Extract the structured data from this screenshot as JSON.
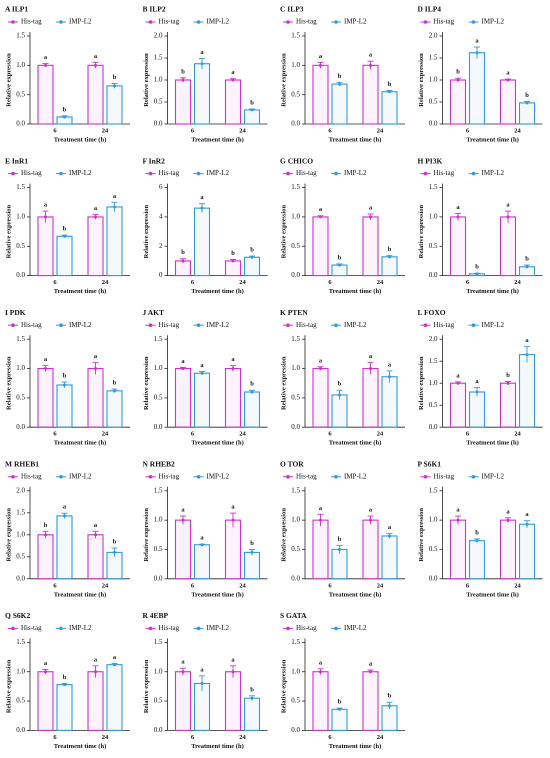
{
  "chart_data": [
    {
      "type": "bar",
      "title": "A ILP1",
      "y_label": "Relative expression",
      "x_label": "Treatment time (h)",
      "categories": [
        "6",
        "24"
      ],
      "ylim": [
        0,
        1.5
      ],
      "yticks": [
        {
          "value": 0,
          "label": "0.0"
        },
        0.5,
        {
          "value": 1,
          "label": "1.0"
        },
        1.5
      ],
      "series": [
        {
          "name": "His-tag",
          "color": "#cc33cc",
          "values": [
            1,
            1
          ],
          "errors": [
            0.03,
            0.05
          ],
          "letters": [
            "a",
            "a"
          ]
        },
        {
          "name": "IMP-L2",
          "color": "#3399dd",
          "values": [
            0.12,
            0.65
          ],
          "errors": [
            0.02,
            0.04
          ],
          "letters": [
            "b",
            "b"
          ]
        }
      ]
    },
    {
      "type": "bar",
      "title": "B ILP2",
      "y_label": "Relative expression",
      "x_label": "Treatment time (h)",
      "categories": [
        "6",
        "24"
      ],
      "ylim": [
        0,
        2
      ],
      "yticks": [
        {
          "value": 0,
          "label": "0.0"
        },
        0.5,
        {
          "value": 1,
          "label": "1.0"
        },
        1.5,
        {
          "value": 2,
          "label": "2.0"
        }
      ],
      "series": [
        {
          "name": "His-tag",
          "color": "#cc33cc",
          "values": [
            1,
            1
          ],
          "errors": [
            0.05,
            0.03
          ],
          "letters": [
            "b",
            "a"
          ]
        },
        {
          "name": "IMP-L2",
          "color": "#3399dd",
          "values": [
            1.37,
            0.32
          ],
          "errors": [
            0.12,
            0.02
          ],
          "letters": [
            "a",
            "b"
          ]
        }
      ]
    },
    {
      "type": "bar",
      "title": "C ILP3",
      "y_label": "Relative expression",
      "x_label": "Treatment time (h)",
      "categories": [
        "6",
        "24"
      ],
      "ylim": [
        0,
        1.5
      ],
      "yticks": [
        {
          "value": 0,
          "label": "0.0"
        },
        0.5,
        {
          "value": 1,
          "label": "1.0"
        },
        1.5
      ],
      "series": [
        {
          "name": "His-tag",
          "color": "#cc33cc",
          "values": [
            1,
            1
          ],
          "errors": [
            0.05,
            0.07
          ],
          "letters": [
            "a",
            "a"
          ]
        },
        {
          "name": "IMP-L2",
          "color": "#3399dd",
          "values": [
            0.68,
            0.55
          ],
          "errors": [
            0.03,
            0.02
          ],
          "letters": [
            "b",
            "b"
          ]
        }
      ]
    },
    {
      "type": "bar",
      "title": "D ILP4",
      "y_label": "Relative expression",
      "x_label": "Treatment time (h)",
      "categories": [
        "6",
        "24"
      ],
      "ylim": [
        0,
        2
      ],
      "yticks": [
        {
          "value": 0,
          "label": "0.0"
        },
        0.5,
        {
          "value": 1,
          "label": "1.0"
        },
        1.5,
        {
          "value": 2,
          "label": "2.0"
        }
      ],
      "series": [
        {
          "name": "His-tag",
          "color": "#cc33cc",
          "values": [
            1,
            1
          ],
          "errors": [
            0.04,
            0.02
          ],
          "letters": [
            "b",
            "a"
          ]
        },
        {
          "name": "IMP-L2",
          "color": "#3399dd",
          "values": [
            1.62,
            0.48
          ],
          "errors": [
            0.13,
            0.03
          ],
          "letters": [
            "a",
            "b"
          ]
        }
      ]
    },
    {
      "type": "bar",
      "title": "E InR1",
      "y_label": "Relative expression",
      "x_label": "Treatment time (h)",
      "categories": [
        "6",
        "24"
      ],
      "ylim": [
        0,
        1.5
      ],
      "yticks": [
        {
          "value": 0,
          "label": "0.0"
        },
        0.5,
        {
          "value": 1,
          "label": "1.0"
        },
        1.5
      ],
      "series": [
        {
          "name": "His-tag",
          "color": "#cc33cc",
          "values": [
            1,
            1
          ],
          "errors": [
            0.1,
            0.04
          ],
          "letters": [
            "a",
            "a"
          ]
        },
        {
          "name": "IMP-L2",
          "color": "#3399dd",
          "values": [
            0.67,
            1.17
          ],
          "errors": [
            0.02,
            0.08
          ],
          "letters": [
            "b",
            "a"
          ]
        }
      ]
    },
    {
      "type": "bar",
      "title": "F InR2",
      "y_label": "Relative expression",
      "x_label": "Treatment time (h)",
      "categories": [
        "6",
        "24"
      ],
      "ylim": [
        0,
        6
      ],
      "yticks": [
        0,
        2,
        4,
        6
      ],
      "series": [
        {
          "name": "His-tag",
          "color": "#cc33cc",
          "values": [
            1,
            1
          ],
          "errors": [
            0.15,
            0.1
          ],
          "letters": [
            "b",
            "b"
          ]
        },
        {
          "name": "IMP-L2",
          "color": "#3399dd",
          "values": [
            4.6,
            1.25
          ],
          "errors": [
            0.3,
            0.08
          ],
          "letters": [
            "a",
            "b"
          ]
        }
      ]
    },
    {
      "type": "bar",
      "title": "G CHICO",
      "y_label": "Relative expression",
      "x_label": "Treatment time (h)",
      "categories": [
        "6",
        "24"
      ],
      "ylim": [
        0,
        1.5
      ],
      "yticks": [
        {
          "value": 0,
          "label": "0.0"
        },
        0.5,
        {
          "value": 1,
          "label": "1.0"
        },
        1.5
      ],
      "series": [
        {
          "name": "His-tag",
          "color": "#cc33cc",
          "values": [
            1,
            1
          ],
          "errors": [
            0.02,
            0.05
          ],
          "letters": [
            "a",
            "a"
          ]
        },
        {
          "name": "IMP-L2",
          "color": "#3399dd",
          "values": [
            0.18,
            0.32
          ],
          "errors": [
            0.02,
            0.02
          ],
          "letters": [
            "b",
            "b"
          ]
        }
      ]
    },
    {
      "type": "bar",
      "title": "H PI3K",
      "y_label": "Relative expression",
      "x_label": "Treatment time (h)",
      "categories": [
        "6",
        "24"
      ],
      "ylim": [
        0,
        1.5
      ],
      "yticks": [
        {
          "value": 0,
          "label": "0.0"
        },
        0.5,
        {
          "value": 1,
          "label": "1.0"
        },
        1.5
      ],
      "series": [
        {
          "name": "His-tag",
          "color": "#cc33cc",
          "values": [
            1,
            1
          ],
          "errors": [
            0.06,
            0.1
          ],
          "letters": [
            "a",
            "a"
          ]
        },
        {
          "name": "IMP-L2",
          "color": "#3399dd",
          "values": [
            0.03,
            0.15
          ],
          "errors": [
            0.01,
            0.03
          ],
          "letters": [
            "b",
            "b"
          ]
        }
      ]
    },
    {
      "type": "bar",
      "title": "I PDK",
      "y_label": "Relative expression",
      "x_label": "Treatment time (h)",
      "categories": [
        "6",
        "24"
      ],
      "ylim": [
        0,
        1.5
      ],
      "yticks": [
        {
          "value": 0,
          "label": "0.0"
        },
        0.5,
        {
          "value": 1,
          "label": "1.0"
        },
        1.5
      ],
      "series": [
        {
          "name": "His-tag",
          "color": "#cc33cc",
          "values": [
            1,
            1
          ],
          "errors": [
            0.05,
            0.1
          ],
          "letters": [
            "a",
            "a"
          ]
        },
        {
          "name": "IMP-L2",
          "color": "#3399dd",
          "values": [
            0.72,
            0.62
          ],
          "errors": [
            0.05,
            0.03
          ],
          "letters": [
            "b",
            "b"
          ]
        }
      ]
    },
    {
      "type": "bar",
      "title": "J AKT",
      "y_label": "Relative expression",
      "x_label": "Treatment time (h)",
      "categories": [
        "6",
        "24"
      ],
      "ylim": [
        0,
        1.5
      ],
      "yticks": [
        {
          "value": 0,
          "label": "0.0"
        },
        0.5,
        {
          "value": 1,
          "label": "1.0"
        },
        1.5
      ],
      "series": [
        {
          "name": "His-tag",
          "color": "#cc33cc",
          "values": [
            1,
            1
          ],
          "errors": [
            0.02,
            0.05
          ],
          "letters": [
            "a",
            "a"
          ]
        },
        {
          "name": "IMP-L2",
          "color": "#3399dd",
          "values": [
            0.92,
            0.6
          ],
          "errors": [
            0.03,
            0.03
          ],
          "letters": [
            "a",
            "b"
          ]
        }
      ]
    },
    {
      "type": "bar",
      "title": "K PTEN",
      "y_label": "Relative expression",
      "x_label": "Treatment time (h)",
      "categories": [
        "6",
        "24"
      ],
      "ylim": [
        0,
        1.5
      ],
      "yticks": [
        {
          "value": 0,
          "label": "0.0"
        },
        0.5,
        {
          "value": 1,
          "label": "1.0"
        },
        1.5
      ],
      "series": [
        {
          "name": "His-tag",
          "color": "#cc33cc",
          "values": [
            1,
            1
          ],
          "errors": [
            0.03,
            0.1
          ],
          "letters": [
            "a",
            "a"
          ]
        },
        {
          "name": "IMP-L2",
          "color": "#3399dd",
          "values": [
            0.55,
            0.86
          ],
          "errors": [
            0.08,
            0.1
          ],
          "letters": [
            "b",
            "a"
          ]
        }
      ]
    },
    {
      "type": "bar",
      "title": "L FOXO",
      "y_label": "Relative expression",
      "x_label": "Treatment time (h)",
      "categories": [
        "6",
        "24"
      ],
      "ylim": [
        0,
        2
      ],
      "yticks": [
        {
          "value": 0,
          "label": "0.0"
        },
        0.5,
        {
          "value": 1,
          "label": "1.0"
        },
        1.5,
        {
          "value": 2,
          "label": "2.0"
        }
      ],
      "series": [
        {
          "name": "His-tag",
          "color": "#cc33cc",
          "values": [
            1,
            1
          ],
          "errors": [
            0.03,
            0.04
          ],
          "letters": [
            "a",
            "b"
          ]
        },
        {
          "name": "IMP-L2",
          "color": "#3399dd",
          "values": [
            0.8,
            1.65
          ],
          "errors": [
            0.1,
            0.18
          ],
          "letters": [
            "a",
            "a"
          ]
        }
      ]
    },
    {
      "type": "bar",
      "title": "M RHEB1",
      "y_label": "Relative expression",
      "x_label": "Treatment time (h)",
      "categories": [
        "6",
        "24"
      ],
      "ylim": [
        0,
        2
      ],
      "yticks": [
        {
          "value": 0,
          "label": "0.0"
        },
        0.5,
        {
          "value": 1,
          "label": "1.0"
        },
        1.5,
        {
          "value": 2,
          "label": "2.0"
        }
      ],
      "series": [
        {
          "name": "His-tag",
          "color": "#cc33cc",
          "values": [
            1,
            1
          ],
          "errors": [
            0.08,
            0.08
          ],
          "letters": [
            "b",
            "a"
          ]
        },
        {
          "name": "IMP-L2",
          "color": "#3399dd",
          "values": [
            1.43,
            0.6
          ],
          "errors": [
            0.06,
            0.1
          ],
          "letters": [
            "a",
            "b"
          ]
        }
      ]
    },
    {
      "type": "bar",
      "title": "N RHEB2",
      "y_label": "Relative expression",
      "x_label": "Treatment time (h)",
      "categories": [
        "6",
        "24"
      ],
      "ylim": [
        0,
        1.5
      ],
      "yticks": [
        {
          "value": 0,
          "label": "0.0"
        },
        0.5,
        {
          "value": 1,
          "label": "1.0"
        },
        1.5
      ],
      "series": [
        {
          "name": "His-tag",
          "color": "#cc33cc",
          "values": [
            1,
            1
          ],
          "errors": [
            0.07,
            0.12
          ],
          "letters": [
            "a",
            "a"
          ]
        },
        {
          "name": "IMP-L2",
          "color": "#3399dd",
          "values": [
            0.58,
            0.45
          ],
          "errors": [
            0.01,
            0.05
          ],
          "letters": [
            "a",
            "b"
          ]
        }
      ]
    },
    {
      "type": "bar",
      "title": "O TOR",
      "y_label": "Relative expression",
      "x_label": "Treatment time (h)",
      "categories": [
        "6",
        "24"
      ],
      "ylim": [
        0,
        1.5
      ],
      "yticks": [
        {
          "value": 0,
          "label": "0.0"
        },
        0.5,
        {
          "value": 1,
          "label": "1.0"
        },
        1.5
      ],
      "series": [
        {
          "name": "His-tag",
          "color": "#cc33cc",
          "values": [
            1,
            1
          ],
          "errors": [
            0.1,
            0.07
          ],
          "letters": [
            "a",
            "a"
          ]
        },
        {
          "name": "IMP-L2",
          "color": "#3399dd",
          "values": [
            0.5,
            0.73
          ],
          "errors": [
            0.07,
            0.04
          ],
          "letters": [
            "b",
            "a"
          ]
        }
      ]
    },
    {
      "type": "bar",
      "title": "P S6K1",
      "y_label": "Relative expression",
      "x_label": "Treatment time (h)",
      "categories": [
        "6",
        "24"
      ],
      "ylim": [
        0,
        1.5
      ],
      "yticks": [
        {
          "value": 0,
          "label": "0.0"
        },
        0.5,
        {
          "value": 1,
          "label": "1.0"
        },
        1.5
      ],
      "series": [
        {
          "name": "His-tag",
          "color": "#cc33cc",
          "values": [
            1,
            1
          ],
          "errors": [
            0.07,
            0.04
          ],
          "letters": [
            "a",
            "a"
          ]
        },
        {
          "name": "IMP-L2",
          "color": "#3399dd",
          "values": [
            0.65,
            0.93
          ],
          "errors": [
            0.03,
            0.06
          ],
          "letters": [
            "b",
            "a"
          ]
        }
      ]
    },
    {
      "type": "bar",
      "title": "Q S6K2",
      "y_label": "Relative expression",
      "x_label": "Treatment time (h)",
      "categories": [
        "6",
        "24"
      ],
      "ylim": [
        0,
        1.5
      ],
      "yticks": [
        {
          "value": 0,
          "label": "0.0"
        },
        0.5,
        {
          "value": 1,
          "label": "1.0"
        },
        1.5
      ],
      "series": [
        {
          "name": "His-tag",
          "color": "#cc33cc",
          "values": [
            1,
            1
          ],
          "errors": [
            0.04,
            0.1
          ],
          "letters": [
            "a",
            "a"
          ]
        },
        {
          "name": "IMP-L2",
          "color": "#3399dd",
          "values": [
            0.78,
            1.12
          ],
          "errors": [
            0.02,
            0.02
          ],
          "letters": [
            "b",
            "a"
          ]
        }
      ]
    },
    {
      "type": "bar",
      "title": "R 4EBP",
      "y_label": "Relative expression",
      "x_label": "Treatment time (h)",
      "categories": [
        "6",
        "24"
      ],
      "ylim": [
        0,
        1.5
      ],
      "yticks": [
        {
          "value": 0,
          "label": "0.0"
        },
        0.5,
        {
          "value": 1,
          "label": "1.0"
        },
        1.5
      ],
      "series": [
        {
          "name": "His-tag",
          "color": "#cc33cc",
          "values": [
            1,
            1
          ],
          "errors": [
            0.06,
            0.1
          ],
          "letters": [
            "a",
            "a"
          ]
        },
        {
          "name": "IMP-L2",
          "color": "#3399dd",
          "values": [
            0.8,
            0.55
          ],
          "errors": [
            0.13,
            0.04
          ],
          "letters": [
            "a",
            "b"
          ]
        }
      ]
    },
    {
      "type": "bar",
      "title": "S GATA",
      "y_label": "Relative expression",
      "x_label": "Treatment time (h)",
      "categories": [
        "6",
        "24"
      ],
      "ylim": [
        0,
        1.5
      ],
      "yticks": [
        {
          "value": 0,
          "label": "0.0"
        },
        0.5,
        {
          "value": 1,
          "label": "1.0"
        },
        1.5
      ],
      "series": [
        {
          "name": "His-tag",
          "color": "#cc33cc",
          "values": [
            1,
            1
          ],
          "errors": [
            0.05,
            0.03
          ],
          "letters": [
            "a",
            "a"
          ]
        },
        {
          "name": "IMP-L2",
          "color": "#3399dd",
          "values": [
            0.36,
            0.42
          ],
          "errors": [
            0.02,
            0.06
          ],
          "letters": [
            "b",
            "b"
          ]
        }
      ]
    }
  ]
}
